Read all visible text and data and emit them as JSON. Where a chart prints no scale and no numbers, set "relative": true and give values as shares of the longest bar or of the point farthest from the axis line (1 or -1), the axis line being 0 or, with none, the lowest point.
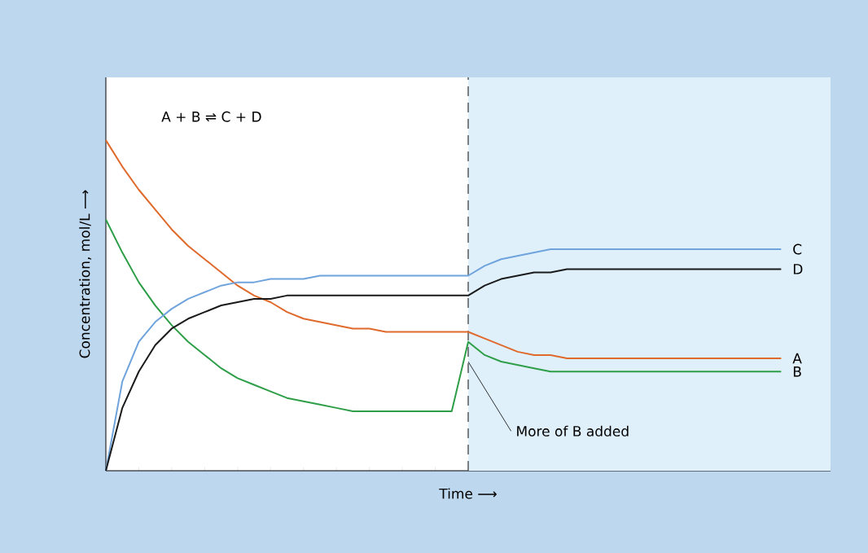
{
  "chart_data": {
    "type": "line",
    "relative": true,
    "xlabel": "Time ⟶",
    "ylabel": "Concentration, mol/L ⟶",
    "categories": [
      null,
      null,
      null,
      null,
      null,
      null,
      null,
      null,
      null,
      null,
      null,
      null,
      null,
      null,
      null,
      null,
      null,
      null,
      null,
      null,
      null,
      null,
      null,
      null,
      null,
      null,
      null,
      null,
      null,
      null,
      null,
      null,
      null,
      null,
      null,
      null,
      null,
      null,
      null,
      null,
      null,
      null
    ],
    "series": [
      {
        "name": "A",
        "color": "#e06a2c",
        "values": [
          1.0,
          0.92,
          0.85,
          0.79,
          0.73,
          0.68,
          0.64,
          0.6,
          0.56,
          0.53,
          0.51,
          0.48,
          0.46,
          0.45,
          0.44,
          0.43,
          0.43,
          0.42,
          0.42,
          0.42,
          0.42,
          0.42,
          0.42,
          0.4,
          0.38,
          0.36,
          0.35,
          0.35,
          0.34,
          0.34,
          0.34,
          0.34,
          0.34,
          0.34,
          0.34,
          0.34,
          0.34,
          0.34,
          0.34,
          0.34,
          0.34,
          0.34
        ]
      },
      {
        "name": "B",
        "color": "#2e9e48",
        "values": [
          0.76,
          0.66,
          0.57,
          0.5,
          0.44,
          0.39,
          0.35,
          0.31,
          0.28,
          0.26,
          0.24,
          0.22,
          0.21,
          0.2,
          0.19,
          0.18,
          0.18,
          0.18,
          0.18,
          0.18,
          0.18,
          0.18,
          0.39,
          0.35,
          0.33,
          0.32,
          0.31,
          0.3,
          0.3,
          0.3,
          0.3,
          0.3,
          0.3,
          0.3,
          0.3,
          0.3,
          0.3,
          0.3,
          0.3,
          0.3,
          0.3,
          0.3
        ]
      },
      {
        "name": "C",
        "color": "#6fa3dc",
        "values": [
          0,
          0.27,
          0.39,
          0.45,
          0.49,
          0.52,
          0.54,
          0.56,
          0.57,
          0.57,
          0.58,
          0.58,
          0.58,
          0.59,
          0.59,
          0.59,
          0.59,
          0.59,
          0.59,
          0.59,
          0.59,
          0.59,
          0.59,
          0.62,
          0.64,
          0.65,
          0.66,
          0.67,
          0.67,
          0.67,
          0.67,
          0.67,
          0.67,
          0.67,
          0.67,
          0.67,
          0.67,
          0.67,
          0.67,
          0.67,
          0.67,
          0.67
        ]
      },
      {
        "name": "D",
        "color": "#1a1a1a",
        "values": [
          0,
          0.19,
          0.3,
          0.38,
          0.43,
          0.46,
          0.48,
          0.5,
          0.51,
          0.52,
          0.52,
          0.53,
          0.53,
          0.53,
          0.53,
          0.53,
          0.53,
          0.53,
          0.53,
          0.53,
          0.53,
          0.53,
          0.53,
          0.56,
          0.58,
          0.59,
          0.6,
          0.6,
          0.61,
          0.61,
          0.61,
          0.61,
          0.61,
          0.61,
          0.61,
          0.61,
          0.61,
          0.61,
          0.61,
          0.61,
          0.61,
          0.61
        ]
      }
    ],
    "annotations": [
      "A + B ⇌ C + D",
      "More of B added"
    ]
  }
}
